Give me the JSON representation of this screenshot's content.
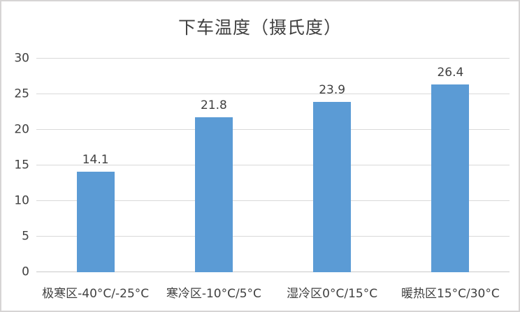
{
  "title": "下车温度（摄氏度）",
  "colors": {
    "bar": "#5b9bd5",
    "gridline": "#d9d9d9",
    "axis_line": "#c9c9c9",
    "text": "#404040",
    "border": "#d6d4d4",
    "background": "#ffffff"
  },
  "chart_data": {
    "type": "bar",
    "title": "下车温度（摄氏度）",
    "categories": [
      "极寒区-40°C/-25°C",
      "寒冷区-10°C/5°C",
      "湿冷区0°C/15°C",
      "暖热区15°C/30°C"
    ],
    "values": [
      14.1,
      21.8,
      23.9,
      26.4
    ],
    "data_labels": [
      "14.1",
      "21.8",
      "23.9",
      "26.4"
    ],
    "xlabel": "",
    "ylabel": "",
    "ylim": [
      0,
      30
    ],
    "yticks": [
      0,
      5,
      10,
      15,
      20,
      25,
      30
    ],
    "grid": true,
    "legend": false,
    "legend_position": "none"
  }
}
